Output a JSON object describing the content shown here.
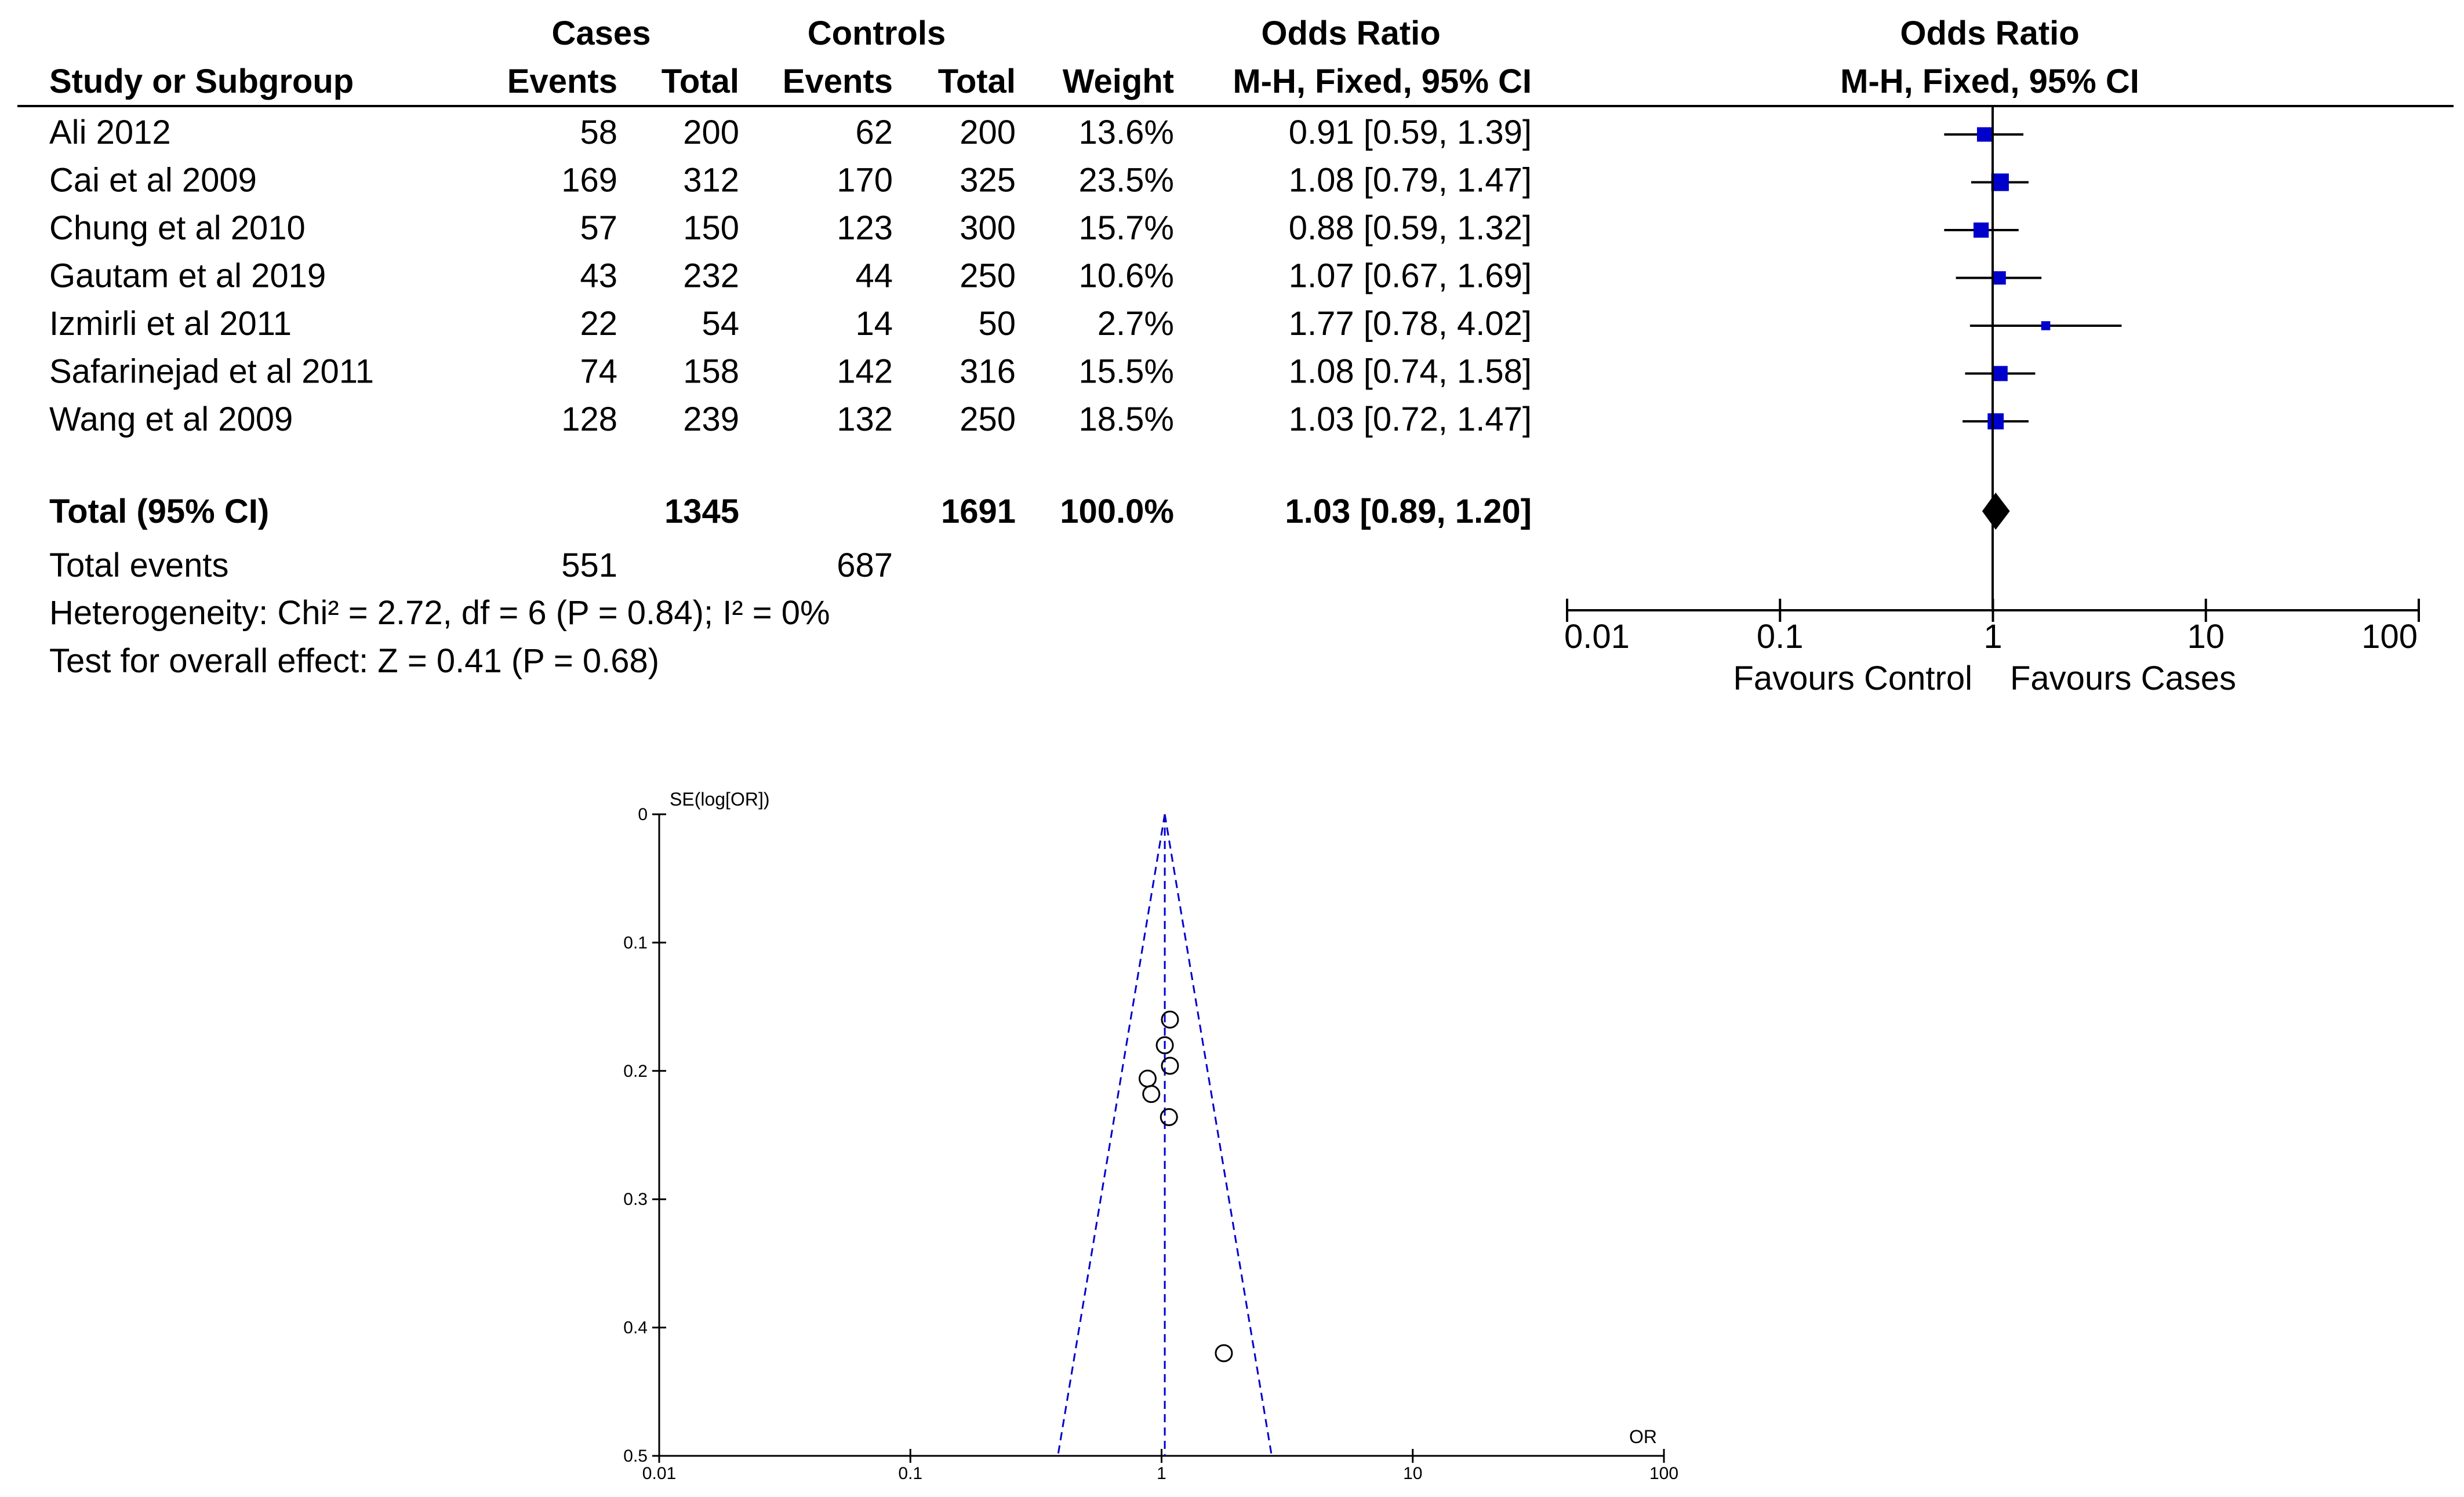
{
  "forest": {
    "headers": {
      "cases_group": "Cases",
      "controls_group": "Controls",
      "or_group": "Odds Ratio",
      "plot_group": "Odds Ratio",
      "study": "Study or Subgroup",
      "events_cases": "Events",
      "total_cases": "Total",
      "events_controls": "Events",
      "total_controls": "Total",
      "weight": "Weight",
      "or_method": "M-H, Fixed, 95% CI",
      "plot_method": "M-H, Fixed, 95% CI"
    },
    "total": {
      "label": "Total (95% CI)",
      "total_cases": "1345",
      "total_controls": "1691",
      "weight": "100.0%",
      "ci_text": "1.03 [0.89, 1.20]"
    },
    "events": {
      "label": "Total events",
      "cases": "551",
      "controls": "687"
    },
    "heterogeneity": "Heterogeneity: Chi² = 2.72, df = 6 (P = 0.84); I² = 0%",
    "overall_effect": "Test for overall effect: Z = 0.41 (P = 0.68)",
    "favours_left": "Favours Control",
    "favours_right": "Favours Cases"
  },
  "chart_data": [
    {
      "type": "forest",
      "x_scale": "log",
      "xlim": [
        0.01,
        100
      ],
      "x_ticks": [
        "0.01",
        "0.1",
        "1",
        "10",
        "100"
      ],
      "marker_color": "#0000cc",
      "studies": [
        {
          "name": "Ali 2012",
          "cases_events": "58",
          "cases_total": "200",
          "controls_events": "62",
          "controls_total": "200",
          "weight": "13.6%",
          "ci_text": "0.91 [0.59, 1.39]",
          "or": 0.91,
          "lower": 0.59,
          "upper": 1.39,
          "w": 13.6
        },
        {
          "name": "Cai et al 2009",
          "cases_events": "169",
          "cases_total": "312",
          "controls_events": "170",
          "controls_total": "325",
          "weight": "23.5%",
          "ci_text": "1.08 [0.79, 1.47]",
          "or": 1.08,
          "lower": 0.79,
          "upper": 1.47,
          "w": 23.5
        },
        {
          "name": "Chung et al 2010",
          "cases_events": "57",
          "cases_total": "150",
          "controls_events": "123",
          "controls_total": "300",
          "weight": "15.7%",
          "ci_text": "0.88 [0.59, 1.32]",
          "or": 0.88,
          "lower": 0.59,
          "upper": 1.32,
          "w": 15.7
        },
        {
          "name": "Gautam et al 2019",
          "cases_events": "43",
          "cases_total": "232",
          "controls_events": "44",
          "controls_total": "250",
          "weight": "10.6%",
          "ci_text": "1.07 [0.67, 1.69]",
          "or": 1.07,
          "lower": 0.67,
          "upper": 1.69,
          "w": 10.6
        },
        {
          "name": "Izmirli et al 2011",
          "cases_events": "22",
          "cases_total": "54",
          "controls_events": "14",
          "controls_total": "50",
          "weight": "2.7%",
          "ci_text": "1.77 [0.78, 4.02]",
          "or": 1.77,
          "lower": 0.78,
          "upper": 4.02,
          "w": 2.7
        },
        {
          "name": "Safarinejad et al 2011",
          "cases_events": "74",
          "cases_total": "158",
          "controls_events": "142",
          "controls_total": "316",
          "weight": "15.5%",
          "ci_text": "1.08 [0.74, 1.58]",
          "or": 1.08,
          "lower": 0.74,
          "upper": 1.58,
          "w": 15.5
        },
        {
          "name": "Wang et al 2009",
          "cases_events": "128",
          "cases_total": "239",
          "controls_events": "132",
          "controls_total": "250",
          "weight": "18.5%",
          "ci_text": "1.03 [0.72, 1.47]",
          "or": 1.03,
          "lower": 0.72,
          "upper": 1.47,
          "w": 18.5
        }
      ],
      "pooled": {
        "or": 1.03,
        "lower": 0.89,
        "upper": 1.2
      }
    },
    {
      "type": "scatter",
      "subtype": "funnel",
      "ylabel": "SE(log[OR])",
      "xlabel": "OR",
      "x_scale": "log",
      "xlim": [
        0.01,
        100
      ],
      "ylim": [
        0,
        0.5
      ],
      "y_inverted": true,
      "x_ticks": [
        "0.01",
        "0.1",
        "1",
        "10",
        "100"
      ],
      "y_ticks": [
        "0",
        "0.1",
        "0.2",
        "0.3",
        "0.4",
        "0.5"
      ],
      "funnel_color": "#0000cc",
      "center_or": 1.03,
      "points": [
        {
          "x": 0.91,
          "y": 0.218
        },
        {
          "x": 1.08,
          "y": 0.16
        },
        {
          "x": 0.88,
          "y": 0.206
        },
        {
          "x": 1.07,
          "y": 0.236
        },
        {
          "x": 1.77,
          "y": 0.42
        },
        {
          "x": 1.08,
          "y": 0.196
        },
        {
          "x": 1.03,
          "y": 0.18
        }
      ]
    }
  ]
}
